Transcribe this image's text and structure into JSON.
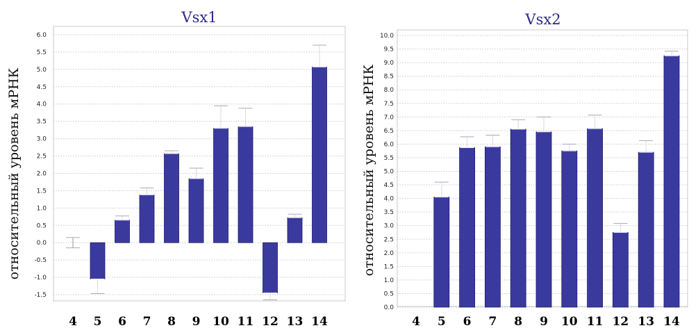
{
  "chart_data": [
    {
      "type": "bar",
      "title": "Vsx1",
      "ylabel": "относительный уровень мРНК",
      "xlabel": "",
      "categories": [
        "4",
        "5",
        "6",
        "7",
        "8",
        "9",
        "10",
        "11",
        "12",
        "13",
        "14"
      ],
      "values": [
        0.0,
        -1.05,
        0.65,
        1.38,
        2.57,
        1.85,
        3.3,
        3.35,
        -1.45,
        0.72,
        5.07
      ],
      "errors": [
        0.15,
        0.42,
        0.12,
        0.2,
        0.08,
        0.3,
        0.65,
        0.53,
        0.2,
        0.1,
        0.63
      ],
      "ylim": [
        -1.5,
        6.0
      ],
      "ytick_step": 0.5,
      "ytick_labels": [
        "-1.5",
        "-1.0",
        "-0.5",
        "0.0",
        "0.5",
        "1.0",
        "1.5",
        "2.0",
        "2.5",
        "3.0",
        "3.5",
        "4.0",
        "4.5",
        "5.0",
        "5.5",
        "6.0"
      ],
      "grid": true,
      "bar_color": "#3a3a9e"
    },
    {
      "type": "bar",
      "title": "Vsx2",
      "ylabel": "относительный уровень мРНК",
      "xlabel": "",
      "categories": [
        "4",
        "5",
        "6",
        "7",
        "8",
        "9",
        "10",
        "11",
        "12",
        "13",
        "14"
      ],
      "values": [
        0.0,
        4.05,
        5.87,
        5.9,
        6.55,
        6.45,
        5.75,
        6.57,
        2.75,
        5.7,
        9.25
      ],
      "errors": [
        0.0,
        0.55,
        0.4,
        0.43,
        0.35,
        0.55,
        0.25,
        0.5,
        0.33,
        0.43,
        0.17
      ],
      "ylim": [
        0.0,
        10.0
      ],
      "ytick_step": 0.5,
      "ytick_labels": [
        "0.0",
        "0.5",
        "1.0",
        "1.5",
        "2.0",
        "2.5",
        "3.0",
        "3.5",
        "4.0",
        "4.5",
        "5.0",
        "5.5",
        "6.0",
        "6.5",
        "7.0",
        "7.5",
        "8.0",
        "8.5",
        "9.0",
        "9.5",
        "10.0"
      ],
      "grid": true,
      "bar_color": "#3a3a9e"
    }
  ]
}
